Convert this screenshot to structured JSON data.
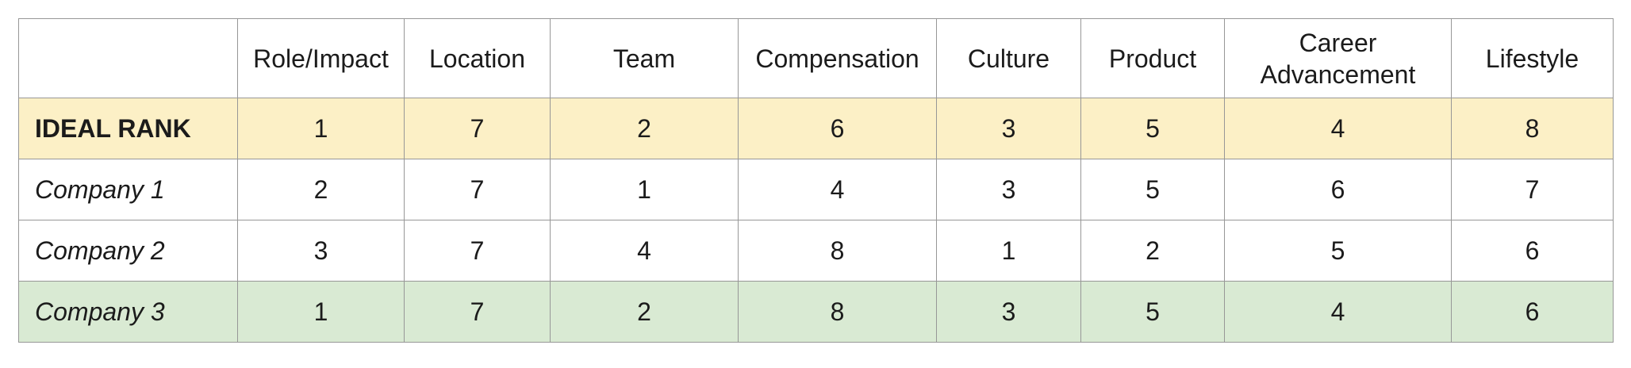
{
  "table": {
    "columns": [
      "",
      "Role/Impact",
      "Location",
      "Team",
      "Compensation",
      "Culture",
      "Product",
      "Career Advancement",
      "Lifestyle"
    ],
    "rows": [
      {
        "label": "IDEAL RANK",
        "style": "ideal",
        "values": [
          "1",
          "7",
          "2",
          "6",
          "3",
          "5",
          "4",
          "8"
        ]
      },
      {
        "label": "Company 1",
        "style": "plain",
        "values": [
          "2",
          "7",
          "1",
          "4",
          "3",
          "5",
          "6",
          "7"
        ]
      },
      {
        "label": "Company 2",
        "style": "plain",
        "values": [
          "3",
          "7",
          "4",
          "8",
          "1",
          "2",
          "5",
          "6"
        ]
      },
      {
        "label": "Company 3",
        "style": "highlight",
        "values": [
          "1",
          "7",
          "2",
          "8",
          "3",
          "5",
          "4",
          "6"
        ]
      }
    ],
    "colors": {
      "ideal_row_bg": "#fcf0c6",
      "highlight_row_bg": "#d9ead3",
      "grid_border": "#979797",
      "text": "#1b1b1b"
    }
  },
  "chart_data": {
    "type": "table",
    "title": "",
    "categories": [
      "Role/Impact",
      "Location",
      "Team",
      "Compensation",
      "Culture",
      "Product",
      "Career Advancement",
      "Lifestyle"
    ],
    "series": [
      {
        "name": "IDEAL RANK",
        "values": [
          1,
          7,
          2,
          6,
          3,
          5,
          4,
          8
        ]
      },
      {
        "name": "Company 1",
        "values": [
          2,
          7,
          1,
          4,
          3,
          5,
          6,
          7
        ]
      },
      {
        "name": "Company 2",
        "values": [
          3,
          7,
          4,
          8,
          1,
          2,
          5,
          6
        ]
      },
      {
        "name": "Company 3",
        "values": [
          1,
          7,
          2,
          8,
          3,
          5,
          4,
          6
        ]
      }
    ]
  }
}
